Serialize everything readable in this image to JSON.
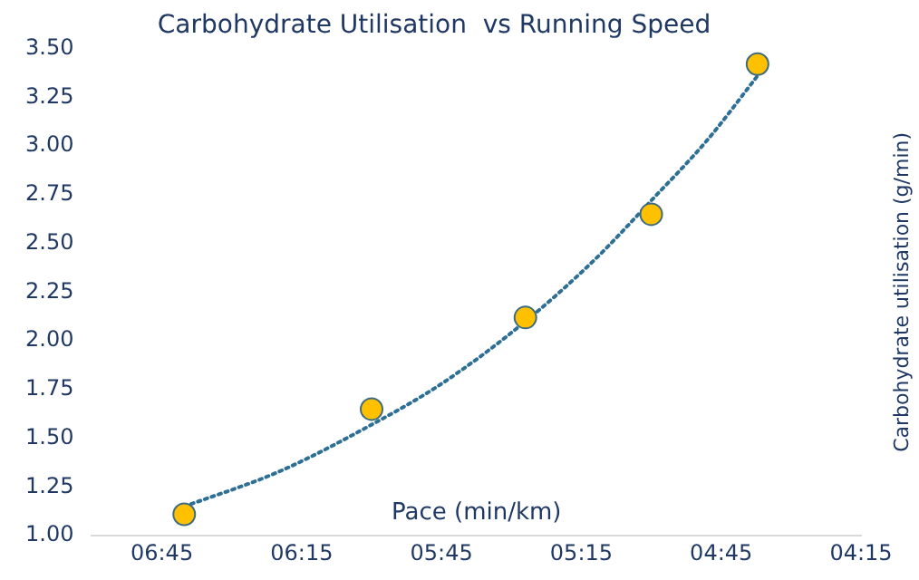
{
  "chart_data": {
    "type": "scatter",
    "title": "Carbohydrate Utilisation  vs Running Speed",
    "xlabel": "Pace (min/km)",
    "ylabel": "Carbohydrate utilisation (g/min)",
    "xlim": [
      7.0,
      4.25
    ],
    "xticks": [
      {
        "value": 6.75,
        "label": "06:45"
      },
      {
        "value": 6.25,
        "label": "06:15"
      },
      {
        "value": 5.75,
        "label": "05:45"
      },
      {
        "value": 5.25,
        "label": "05:15"
      },
      {
        "value": 4.75,
        "label": "04:45"
      },
      {
        "value": 4.25,
        "label": "04:15"
      }
    ],
    "ylim": [
      1.0,
      3.5
    ],
    "yticks": [
      {
        "value": 1.0,
        "label": "1.00"
      },
      {
        "value": 1.25,
        "label": "1.25"
      },
      {
        "value": 1.5,
        "label": "1.50"
      },
      {
        "value": 1.75,
        "label": "1.75"
      },
      {
        "value": 2.0,
        "label": "2.00"
      },
      {
        "value": 2.25,
        "label": "2.25"
      },
      {
        "value": 2.5,
        "label": "2.50"
      },
      {
        "value": 2.75,
        "label": "2.75"
      },
      {
        "value": 3.0,
        "label": "3.00"
      },
      {
        "value": 3.25,
        "label": "3.25"
      },
      {
        "value": 3.5,
        "label": "3.50"
      }
    ],
    "grid": false,
    "legend": false,
    "marker": "circle",
    "series": [
      {
        "color": "#ffc000",
        "x": [
          6.67,
          6.0,
          5.45,
          5.0,
          4.62
        ],
        "values": [
          1.11,
          1.65,
          2.12,
          2.65,
          3.42
        ]
      },
      {
        "type": "line",
        "color": "#2e6f96",
        "line_style": "dotted",
        "marker": "none",
        "x": [
          6.67,
          6.33,
          6.0,
          5.75,
          5.45,
          5.2,
          5.0,
          4.8,
          4.62
        ],
        "values": [
          1.15,
          1.33,
          1.57,
          1.78,
          2.1,
          2.42,
          2.72,
          3.03,
          3.36
        ]
      }
    ]
  }
}
